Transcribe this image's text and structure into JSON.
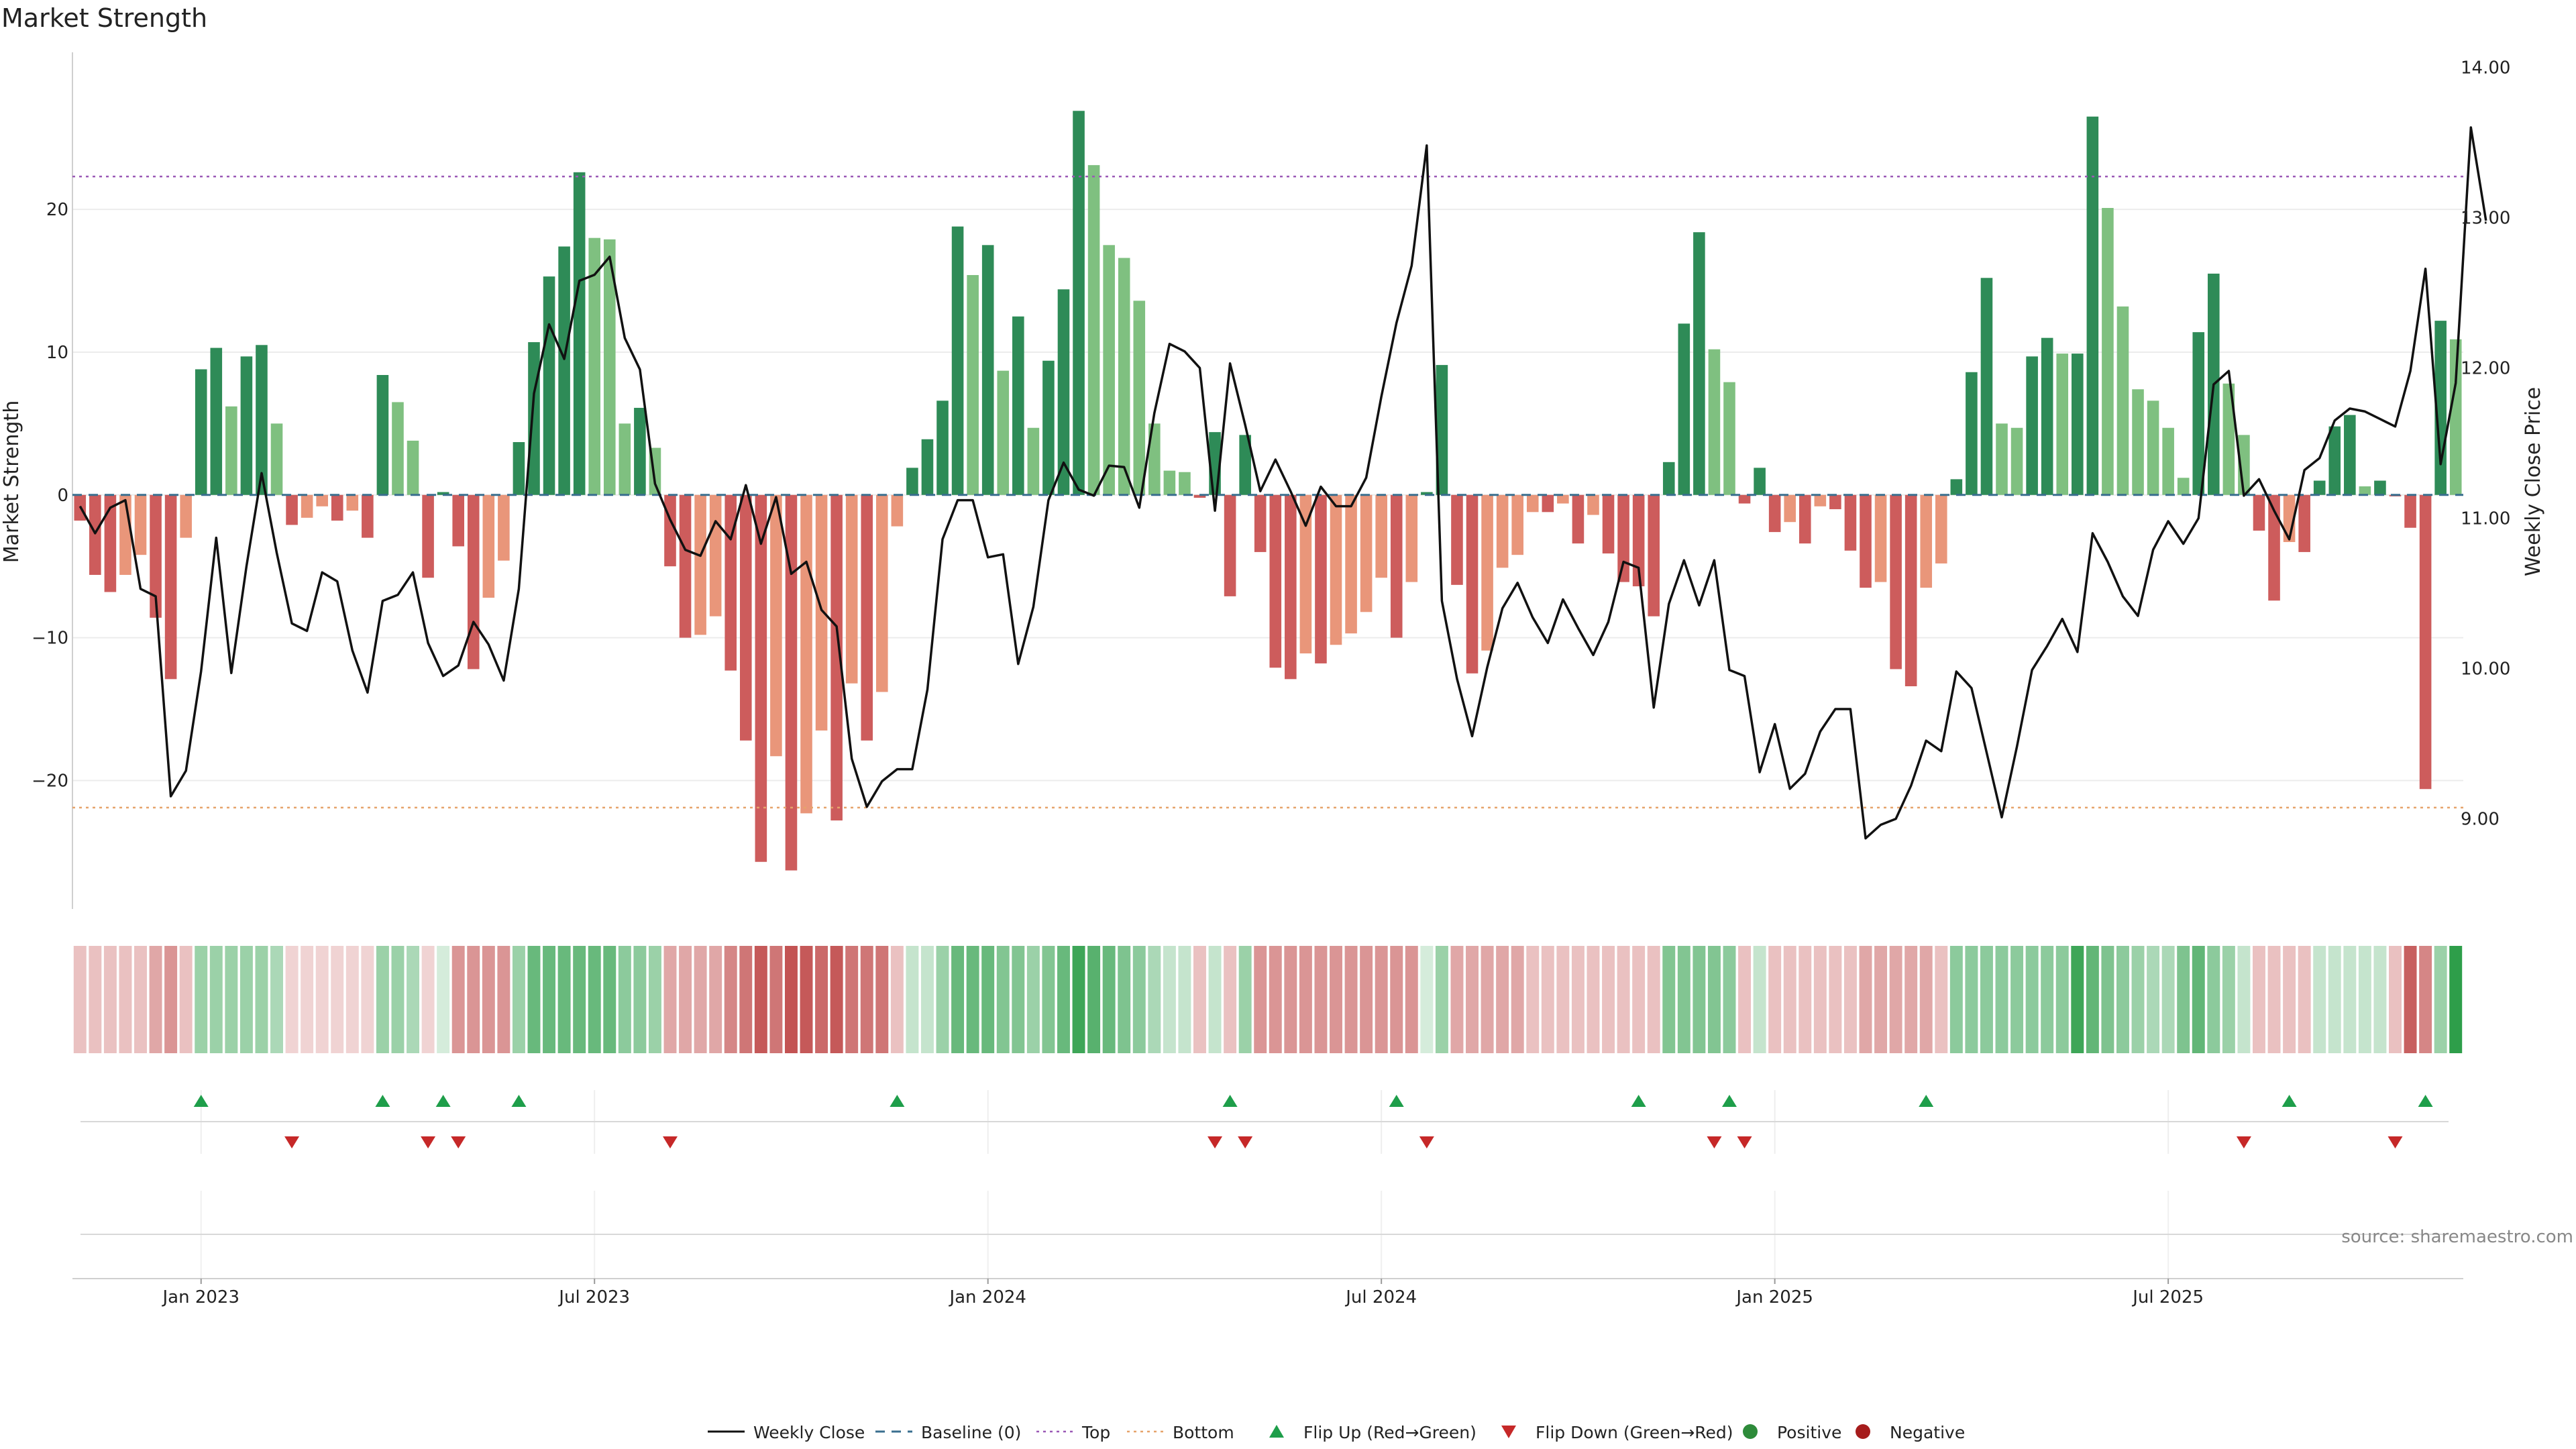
{
  "chart_data": {
    "type": "bar",
    "title": "Market Strength",
    "ylabel_left": "Market Strength",
    "ylabel_right": "Weekly Close Price",
    "left_ylim": [
      -29,
      31
    ],
    "left_yticks": [
      -20,
      -10,
      0,
      10,
      20
    ],
    "left_ytick_labels": [
      "−20",
      "−10",
      "0",
      "10",
      "20"
    ],
    "right_ylim": [
      8.4,
      14.1
    ],
    "right_yticks": [
      9.0,
      10.0,
      11.0,
      12.0,
      13.0,
      14.0
    ],
    "right_ytick_labels": [
      "9.00",
      "10.00",
      "11.00",
      "12.00",
      "13.00",
      "14.00"
    ],
    "top_level": 22.3,
    "bottom_level": -21.9,
    "x_labels": [
      "Jan 2023",
      "Jul 2023",
      "Jan 2024",
      "Jul 2024",
      "Jan 2025",
      "Jul 2025"
    ],
    "x_label_week_index": [
      8,
      34,
      60,
      86,
      112,
      138
    ],
    "strength": [
      -1.8,
      -5.6,
      -6.8,
      -5.6,
      -4.2,
      -8.6,
      -12.9,
      -3.0,
      8.8,
      10.3,
      6.2,
      9.7,
      10.5,
      5.0,
      -2.1,
      -1.6,
      -0.8,
      -1.8,
      -1.1,
      -3.0,
      8.4,
      6.5,
      3.8,
      -5.8,
      0.2,
      -3.6,
      -12.2,
      -7.2,
      -4.6,
      3.7,
      10.7,
      15.3,
      17.4,
      22.6,
      18.0,
      17.9,
      5.0,
      6.1,
      3.3,
      -5.0,
      -10.0,
      -9.8,
      -8.5,
      -12.3,
      -17.2,
      -25.7,
      -18.3,
      -26.3,
      -22.3,
      -16.5,
      -22.8,
      -13.2,
      -17.2,
      -13.8,
      -2.2,
      1.9,
      3.9,
      6.6,
      18.8,
      15.4,
      17.5,
      8.7,
      12.5,
      4.7,
      9.4,
      14.4,
      26.9,
      23.1,
      17.5,
      16.6,
      13.6,
      5.0,
      1.7,
      1.6,
      -0.2,
      4.4,
      -7.1,
      4.2,
      -4.0,
      -12.1,
      -12.9,
      -11.1,
      -11.8,
      -10.5,
      -9.7,
      -8.2,
      -5.8,
      -10.0,
      -6.1,
      0.2,
      9.1,
      -6.3,
      -12.5,
      -10.9,
      -5.1,
      -4.2,
      -1.2,
      -1.2,
      -0.6,
      -3.4,
      -1.4,
      -4.1,
      -6.1,
      -6.4,
      -8.5,
      2.3,
      12.0,
      18.4,
      10.2,
      7.9,
      -0.6,
      1.9,
      -2.6,
      -1.9,
      -3.4,
      -0.8,
      -1.0,
      -3.9,
      -6.5,
      -6.1,
      -12.2,
      -13.4,
      -6.5,
      -4.8,
      1.1,
      8.6,
      15.2,
      5.0,
      4.7,
      9.7,
      11.0,
      9.9,
      9.9,
      26.5,
      20.1,
      13.2,
      7.4,
      6.6,
      4.7,
      1.2,
      11.4,
      15.5,
      7.8,
      4.2,
      -2.5,
      -7.4,
      -3.3,
      -4.0,
      1.0,
      4.8,
      5.6,
      0.6,
      1.0,
      -0.1,
      -2.3,
      -20.6,
      12.2,
      10.9
    ],
    "weekly_close": [
      11.08,
      10.9,
      11.07,
      11.12,
      10.53,
      10.48,
      9.15,
      9.32,
      9.98,
      10.87,
      9.97,
      10.68,
      11.3,
      10.77,
      10.3,
      10.25,
      10.64,
      10.58,
      10.12,
      9.84,
      10.45,
      10.49,
      10.64,
      10.17,
      9.95,
      10.02,
      10.31,
      10.16,
      9.92,
      10.53,
      11.83,
      12.29,
      12.06,
      12.58,
      12.62,
      12.74,
      12.2,
      11.99,
      11.23,
      10.99,
      10.79,
      10.75,
      10.98,
      10.86,
      11.22,
      10.83,
      11.14,
      10.63,
      10.71,
      10.39,
      10.28,
      9.4,
      9.08,
      9.25,
      9.33,
      9.33,
      9.86,
      10.86,
      11.12,
      11.12,
      10.74,
      10.76,
      10.03,
      10.41,
      11.12,
      11.37,
      11.19,
      11.15,
      11.35,
      11.34,
      11.07,
      11.7,
      12.16,
      12.11,
      12.0,
      11.05,
      12.03,
      11.62,
      11.18,
      11.39,
      11.18,
      10.95,
      11.21,
      11.08,
      11.08,
      11.27,
      11.81,
      12.3,
      12.68,
      13.48,
      10.45,
      9.93,
      9.55,
      10.01,
      10.4,
      10.57,
      10.34,
      10.17,
      10.46,
      10.27,
      10.09,
      10.31,
      10.71,
      10.67,
      9.74,
      10.43,
      10.72,
      10.42,
      10.72,
      9.99,
      9.95,
      9.31,
      9.63,
      9.2,
      9.3,
      9.58,
      9.73,
      9.73,
      8.87,
      8.96,
      9.0,
      9.22,
      9.52,
      9.45,
      9.98,
      9.87,
      9.44,
      9.01,
      9.48,
      9.99,
      10.15,
      10.33,
      10.11,
      10.9,
      10.71,
      10.48,
      10.35,
      10.79,
      10.98,
      10.83,
      11.0,
      11.89,
      11.98,
      11.15,
      11.26,
      11.05,
      10.86,
      11.32,
      11.4,
      11.65,
      11.73,
      11.71,
      11.66,
      11.61,
      11.98,
      12.66,
      11.36,
      11.9,
      13.6,
      12.98
    ],
    "heat_alpha": [
      0.28,
      0.28,
      0.28,
      0.28,
      0.28,
      0.4,
      0.48,
      0.28,
      0.48,
      0.48,
      0.48,
      0.48,
      0.48,
      0.4,
      0.2,
      0.2,
      0.2,
      0.2,
      0.2,
      0.2,
      0.48,
      0.48,
      0.4,
      0.2,
      0.2,
      0.48,
      0.48,
      0.48,
      0.48,
      0.48,
      0.72,
      0.72,
      0.72,
      0.72,
      0.72,
      0.72,
      0.55,
      0.55,
      0.48,
      0.4,
      0.4,
      0.4,
      0.4,
      0.55,
      0.62,
      0.75,
      0.62,
      0.78,
      0.75,
      0.68,
      0.75,
      0.62,
      0.62,
      0.62,
      0.28,
      0.28,
      0.28,
      0.48,
      0.72,
      0.72,
      0.72,
      0.6,
      0.6,
      0.48,
      0.6,
      0.72,
      0.92,
      0.8,
      0.72,
      0.62,
      0.55,
      0.4,
      0.28,
      0.28,
      0.28,
      0.28,
      0.28,
      0.48,
      0.48,
      0.48,
      0.48,
      0.48,
      0.48,
      0.48,
      0.48,
      0.48,
      0.48,
      0.48,
      0.48,
      0.2,
      0.48,
      0.4,
      0.4,
      0.4,
      0.4,
      0.4,
      0.28,
      0.28,
      0.28,
      0.28,
      0.28,
      0.28,
      0.28,
      0.28,
      0.28,
      0.6,
      0.6,
      0.6,
      0.6,
      0.55,
      0.28,
      0.28,
      0.28,
      0.28,
      0.28,
      0.28,
      0.28,
      0.28,
      0.4,
      0.4,
      0.4,
      0.4,
      0.4,
      0.28,
      0.55,
      0.55,
      0.55,
      0.55,
      0.55,
      0.55,
      0.55,
      0.55,
      0.92,
      0.75,
      0.62,
      0.55,
      0.48,
      0.4,
      0.4,
      0.62,
      0.75,
      0.55,
      0.48,
      0.28,
      0.28,
      0.28,
      0.28,
      0.28,
      0.28,
      0.28,
      0.28,
      0.28,
      0.28,
      0.28,
      0.72,
      0.55,
      0.48
    ],
    "flip_up_weeks": [
      8,
      20,
      24,
      29,
      54,
      76,
      87,
      103,
      109,
      122,
      146,
      155
    ],
    "flip_down_weeks": [
      14,
      23,
      25,
      39,
      75,
      77,
      89,
      108,
      110,
      143,
      153
    ],
    "legend": [
      {
        "label": "Weekly Close",
        "kind": "line",
        "color": "#111111"
      },
      {
        "label": "Baseline (0)",
        "kind": "dash",
        "color": "#3a6f8f"
      },
      {
        "label": "Top",
        "kind": "dot",
        "color": "#9b59b6"
      },
      {
        "label": "Bottom",
        "kind": "dot",
        "color": "#e6a36b"
      },
      {
        "label": "Flip Up (Red→Green)",
        "kind": "tri-up",
        "color": "#1e9e4a"
      },
      {
        "label": "Flip Down (Green→Red)",
        "kind": "tri-down",
        "color": "#c62828"
      },
      {
        "label": "Positive",
        "kind": "circle",
        "color": "#2e8b3a"
      },
      {
        "label": "Negative",
        "kind": "circle",
        "color": "#a61c1c"
      }
    ],
    "source_note": "source: sharemaestro.com"
  },
  "colors": {
    "pos_strong": "#2e8b57",
    "pos_weak": "#7fc080",
    "neg_strong": "#cd5c5c",
    "neg_weak": "#e9967a",
    "heat_pos": "#2e9e4a",
    "heat_neg": "#b22222",
    "top_line": "#9b59b6",
    "bottom_line": "#e6a36b",
    "baseline": "#3a6f8f",
    "grid": "#ececec",
    "axis": "#cfcfcf"
  }
}
